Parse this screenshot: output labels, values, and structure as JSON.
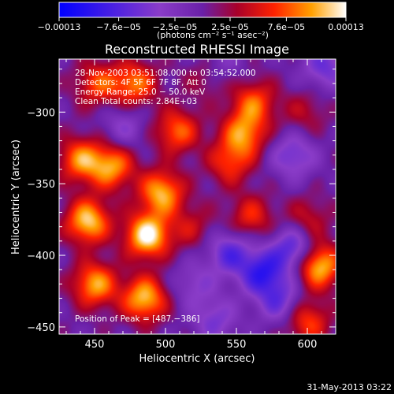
{
  "chart_data": {
    "type": "heatmap",
    "title": "Reconstructed RHESSI Image",
    "xlabel": "Heliocentric X (arcsec)",
    "ylabel": "Heliocentric Y (arcsec)",
    "xlim": [
      425,
      620
    ],
    "ylim": [
      -455,
      -263
    ],
    "x_ticks": [
      450,
      500,
      550,
      600
    ],
    "y_ticks": [
      -300,
      -350,
      -400,
      -450
    ],
    "x_tick_labels": [
      "450",
      "500",
      "550",
      "600"
    ],
    "y_tick_labels": [
      "−300",
      "−350",
      "−400",
      "−450"
    ],
    "colorbar": {
      "range": [
        -0.00013,
        0.00013
      ],
      "tick_values": [
        -0.00013,
        -7.6e-05,
        -2.5e-05,
        2.5e-05,
        7.6e-05,
        0.00013
      ],
      "tick_labels": [
        "−0.00013",
        "−7.6e−05",
        "−2.5e−05",
        "2.5e−05",
        "7.6e−05",
        "0.00013"
      ],
      "unit_label": "(photons cm⁻² s⁻¹ asec⁻²)"
    },
    "info_lines": [
      "28-Nov-2003 03:51:08.000 to 03:54:52.000",
      "Detectors: 4F 5F 6F 7F 8F, Att 0",
      "Energy Range: 25.0 − 50.0 keV",
      "Clean    Total counts: 2.84E+03"
    ],
    "peak_label": "Position of Peak = [487,−386]",
    "peak_position": [
      487,
      -386
    ],
    "peaks": [
      {
        "x": 487,
        "y": -386,
        "value": 0.00013
      },
      {
        "x": 445,
        "y": -376,
        "value": 0.000115
      },
      {
        "x": 497,
        "y": -356,
        "value": 0.000105
      },
      {
        "x": 485,
        "y": -430,
        "value": 0.00011
      },
      {
        "x": 450,
        "y": -420,
        "value": 0.0001
      },
      {
        "x": 462,
        "y": -338,
        "value": 9.5e-05
      },
      {
        "x": 440,
        "y": -333,
        "value": 9e-05
      },
      {
        "x": 508,
        "y": -313,
        "value": 8e-05
      },
      {
        "x": 478,
        "y": -280,
        "value": 8.5e-05
      },
      {
        "x": 452,
        "y": -280,
        "value": 7e-05
      },
      {
        "x": 555,
        "y": -315,
        "value": 9e-05
      },
      {
        "x": 562,
        "y": -293,
        "value": 7.5e-05
      },
      {
        "x": 545,
        "y": -335,
        "value": 6.5e-05
      },
      {
        "x": 608,
        "y": -407,
        "value": 0.000115
      },
      {
        "x": 600,
        "y": -446,
        "value": 7e-05
      },
      {
        "x": 560,
        "y": -373,
        "value": 6e-05
      },
      {
        "x": 518,
        "y": -380,
        "value": 4e-05
      },
      {
        "x": 600,
        "y": -375,
        "value": 4.5e-05
      },
      {
        "x": 530,
        "y": -275,
        "value": 4e-05
      },
      {
        "x": 598,
        "y": -300,
        "value": 3.5e-05
      },
      {
        "x": 590,
        "y": -330,
        "value": -6e-05
      },
      {
        "x": 568,
        "y": -412,
        "value": -9e-05
      },
      {
        "x": 545,
        "y": -398,
        "value": -7e-05
      },
      {
        "x": 590,
        "y": -395,
        "value": -8e-05
      },
      {
        "x": 520,
        "y": -420,
        "value": -4e-05
      },
      {
        "x": 580,
        "y": -432,
        "value": -6e-05
      },
      {
        "x": 612,
        "y": -268,
        "value": -6e-05
      },
      {
        "x": 470,
        "y": -310,
        "value": -4e-05
      },
      {
        "x": 538,
        "y": -268,
        "value": -4e-05
      },
      {
        "x": 535,
        "y": -445,
        "value": -5e-05
      }
    ]
  },
  "footer": {
    "date": "31-May-2013 03:22"
  }
}
